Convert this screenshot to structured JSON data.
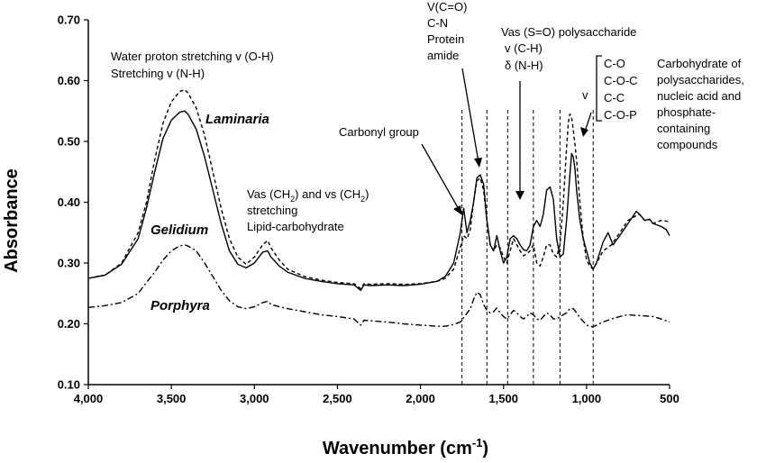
{
  "chart_data": {
    "type": "line",
    "xlabel_main": "Wavenumber (cm",
    "xlabel_sup": "-1",
    "xlabel_tail": ")",
    "ylabel": "Absorbance",
    "xlim": [
      4000,
      500
    ],
    "x_reversed": true,
    "ylim": [
      0.1,
      0.7
    ],
    "grid": false,
    "x_ticks": [
      {
        "value": 4000,
        "label": "4,000"
      },
      {
        "value": 3500,
        "label": "3,500"
      },
      {
        "value": 3000,
        "label": "3,000"
      },
      {
        "value": 2500,
        "label": "2,500"
      },
      {
        "value": 2000,
        "label": "2,000"
      },
      {
        "value": 1500,
        "label": "1,500"
      },
      {
        "value": 1000,
        "label": "1,000"
      },
      {
        "value": 500,
        "label": "500"
      }
    ],
    "y_ticks": [
      {
        "value": 0.1,
        "label": "0.10"
      },
      {
        "value": 0.2,
        "label": "0.20"
      },
      {
        "value": 0.3,
        "label": "0.30"
      },
      {
        "value": 0.4,
        "label": "0.40"
      },
      {
        "value": 0.5,
        "label": "0.50"
      },
      {
        "value": 0.6,
        "label": "0.60"
      },
      {
        "value": 0.7,
        "label": "0.70"
      }
    ],
    "series": [
      {
        "name": "Laminaria",
        "style": "dashed",
        "color": "#000000",
        "points": [
          [
            4000,
            0.275
          ],
          [
            3900,
            0.28
          ],
          [
            3800,
            0.3
          ],
          [
            3700,
            0.35
          ],
          [
            3650,
            0.4
          ],
          [
            3600,
            0.47
          ],
          [
            3550,
            0.53
          ],
          [
            3500,
            0.565
          ],
          [
            3450,
            0.582
          ],
          [
            3420,
            0.585
          ],
          [
            3400,
            0.58
          ],
          [
            3350,
            0.555
          ],
          [
            3300,
            0.51
          ],
          [
            3250,
            0.45
          ],
          [
            3200,
            0.39
          ],
          [
            3150,
            0.34
          ],
          [
            3100,
            0.31
          ],
          [
            3050,
            0.298
          ],
          [
            3000,
            0.31
          ],
          [
            2950,
            0.33
          ],
          [
            2920,
            0.337
          ],
          [
            2900,
            0.325
          ],
          [
            2850,
            0.305
          ],
          [
            2800,
            0.29
          ],
          [
            2700,
            0.278
          ],
          [
            2600,
            0.272
          ],
          [
            2500,
            0.268
          ],
          [
            2400,
            0.266
          ],
          [
            2360,
            0.258
          ],
          [
            2340,
            0.266
          ],
          [
            2300,
            0.265
          ],
          [
            2200,
            0.266
          ],
          [
            2100,
            0.265
          ],
          [
            2000,
            0.266
          ],
          [
            1900,
            0.27
          ],
          [
            1850,
            0.275
          ],
          [
            1800,
            0.29
          ],
          [
            1760,
            0.325
          ],
          [
            1740,
            0.345
          ],
          [
            1720,
            0.34
          ],
          [
            1700,
            0.355
          ],
          [
            1680,
            0.4
          ],
          [
            1660,
            0.435
          ],
          [
            1640,
            0.44
          ],
          [
            1620,
            0.42
          ],
          [
            1600,
            0.37
          ],
          [
            1580,
            0.33
          ],
          [
            1560,
            0.32
          ],
          [
            1540,
            0.33
          ],
          [
            1520,
            0.325
          ],
          [
            1500,
            0.31
          ],
          [
            1480,
            0.3
          ],
          [
            1460,
            0.32
          ],
          [
            1440,
            0.34
          ],
          [
            1420,
            0.33
          ],
          [
            1400,
            0.32
          ],
          [
            1380,
            0.312
          ],
          [
            1360,
            0.315
          ],
          [
            1340,
            0.32
          ],
          [
            1320,
            0.33
          ],
          [
            1300,
            0.3
          ],
          [
            1280,
            0.295
          ],
          [
            1260,
            0.31
          ],
          [
            1240,
            0.33
          ],
          [
            1220,
            0.33
          ],
          [
            1200,
            0.315
          ],
          [
            1180,
            0.31
          ],
          [
            1160,
            0.33
          ],
          [
            1140,
            0.4
          ],
          [
            1120,
            0.49
          ],
          [
            1110,
            0.53
          ],
          [
            1100,
            0.545
          ],
          [
            1090,
            0.54
          ],
          [
            1080,
            0.52
          ],
          [
            1060,
            0.47
          ],
          [
            1040,
            0.4
          ],
          [
            1020,
            0.34
          ],
          [
            1000,
            0.305
          ],
          [
            980,
            0.295
          ],
          [
            960,
            0.29
          ],
          [
            940,
            0.3
          ],
          [
            900,
            0.32
          ],
          [
            850,
            0.33
          ],
          [
            800,
            0.35
          ],
          [
            750,
            0.37
          ],
          [
            700,
            0.378
          ],
          [
            680,
            0.38
          ],
          [
            650,
            0.37
          ],
          [
            620,
            0.372
          ],
          [
            600,
            0.365
          ],
          [
            550,
            0.37
          ],
          [
            500,
            0.368
          ]
        ]
      },
      {
        "name": "Gelidium",
        "style": "solid",
        "color": "#000000",
        "points": [
          [
            4000,
            0.275
          ],
          [
            3900,
            0.28
          ],
          [
            3800,
            0.298
          ],
          [
            3700,
            0.34
          ],
          [
            3650,
            0.39
          ],
          [
            3600,
            0.45
          ],
          [
            3550,
            0.505
          ],
          [
            3500,
            0.535
          ],
          [
            3450,
            0.548
          ],
          [
            3420,
            0.55
          ],
          [
            3400,
            0.545
          ],
          [
            3350,
            0.52
          ],
          [
            3300,
            0.475
          ],
          [
            3250,
            0.42
          ],
          [
            3200,
            0.365
          ],
          [
            3150,
            0.32
          ],
          [
            3100,
            0.298
          ],
          [
            3050,
            0.292
          ],
          [
            3000,
            0.3
          ],
          [
            2950,
            0.318
          ],
          [
            2920,
            0.32
          ],
          [
            2900,
            0.31
          ],
          [
            2850,
            0.295
          ],
          [
            2800,
            0.285
          ],
          [
            2700,
            0.275
          ],
          [
            2600,
            0.27
          ],
          [
            2500,
            0.266
          ],
          [
            2400,
            0.264
          ],
          [
            2360,
            0.255
          ],
          [
            2340,
            0.264
          ],
          [
            2300,
            0.263
          ],
          [
            2200,
            0.264
          ],
          [
            2100,
            0.263
          ],
          [
            2000,
            0.265
          ],
          [
            1900,
            0.27
          ],
          [
            1850,
            0.278
          ],
          [
            1800,
            0.3
          ],
          [
            1760,
            0.35
          ],
          [
            1740,
            0.39
          ],
          [
            1720,
            0.35
          ],
          [
            1700,
            0.37
          ],
          [
            1680,
            0.4
          ],
          [
            1660,
            0.44
          ],
          [
            1640,
            0.445
          ],
          [
            1620,
            0.43
          ],
          [
            1600,
            0.37
          ],
          [
            1580,
            0.33
          ],
          [
            1560,
            0.32
          ],
          [
            1540,
            0.345
          ],
          [
            1520,
            0.32
          ],
          [
            1500,
            0.3
          ],
          [
            1480,
            0.31
          ],
          [
            1460,
            0.34
          ],
          [
            1440,
            0.345
          ],
          [
            1420,
            0.34
          ],
          [
            1400,
            0.33
          ],
          [
            1380,
            0.322
          ],
          [
            1360,
            0.32
          ],
          [
            1340,
            0.33
          ],
          [
            1320,
            0.36
          ],
          [
            1300,
            0.37
          ],
          [
            1280,
            0.36
          ],
          [
            1260,
            0.38
          ],
          [
            1240,
            0.42
          ],
          [
            1220,
            0.425
          ],
          [
            1200,
            0.405
          ],
          [
            1180,
            0.34
          ],
          [
            1160,
            0.31
          ],
          [
            1140,
            0.315
          ],
          [
            1120,
            0.37
          ],
          [
            1100,
            0.445
          ],
          [
            1090,
            0.48
          ],
          [
            1080,
            0.475
          ],
          [
            1070,
            0.455
          ],
          [
            1060,
            0.42
          ],
          [
            1040,
            0.37
          ],
          [
            1020,
            0.34
          ],
          [
            1000,
            0.32
          ],
          [
            980,
            0.3
          ],
          [
            960,
            0.29
          ],
          [
            940,
            0.3
          ],
          [
            900,
            0.335
          ],
          [
            870,
            0.35
          ],
          [
            840,
            0.33
          ],
          [
            800,
            0.345
          ],
          [
            750,
            0.365
          ],
          [
            700,
            0.385
          ],
          [
            680,
            0.38
          ],
          [
            650,
            0.37
          ],
          [
            620,
            0.372
          ],
          [
            600,
            0.365
          ],
          [
            550,
            0.36
          ],
          [
            520,
            0.355
          ],
          [
            500,
            0.345
          ]
        ]
      },
      {
        "name": "Porphyra",
        "style": "dashdot",
        "color": "#000000",
        "points": [
          [
            4000,
            0.227
          ],
          [
            3900,
            0.23
          ],
          [
            3800,
            0.235
          ],
          [
            3700,
            0.25
          ],
          [
            3650,
            0.268
          ],
          [
            3600,
            0.285
          ],
          [
            3550,
            0.305
          ],
          [
            3500,
            0.32
          ],
          [
            3450,
            0.328
          ],
          [
            3420,
            0.33
          ],
          [
            3400,
            0.328
          ],
          [
            3350,
            0.32
          ],
          [
            3300,
            0.3
          ],
          [
            3250,
            0.278
          ],
          [
            3200,
            0.255
          ],
          [
            3150,
            0.238
          ],
          [
            3100,
            0.228
          ],
          [
            3050,
            0.225
          ],
          [
            3000,
            0.228
          ],
          [
            2950,
            0.235
          ],
          [
            2920,
            0.237
          ],
          [
            2900,
            0.232
          ],
          [
            2850,
            0.228
          ],
          [
            2800,
            0.225
          ],
          [
            2700,
            0.22
          ],
          [
            2600,
            0.215
          ],
          [
            2500,
            0.212
          ],
          [
            2400,
            0.208
          ],
          [
            2360,
            0.198
          ],
          [
            2340,
            0.206
          ],
          [
            2300,
            0.205
          ],
          [
            2200,
            0.203
          ],
          [
            2100,
            0.2
          ],
          [
            2000,
            0.198
          ],
          [
            1900,
            0.196
          ],
          [
            1850,
            0.196
          ],
          [
            1800,
            0.199
          ],
          [
            1760,
            0.203
          ],
          [
            1740,
            0.21
          ],
          [
            1700,
            0.225
          ],
          [
            1680,
            0.24
          ],
          [
            1660,
            0.252
          ],
          [
            1640,
            0.248
          ],
          [
            1620,
            0.232
          ],
          [
            1600,
            0.222
          ],
          [
            1580,
            0.218
          ],
          [
            1560,
            0.22
          ],
          [
            1540,
            0.226
          ],
          [
            1520,
            0.218
          ],
          [
            1500,
            0.212
          ],
          [
            1480,
            0.208
          ],
          [
            1460,
            0.215
          ],
          [
            1440,
            0.222
          ],
          [
            1420,
            0.218
          ],
          [
            1400,
            0.212
          ],
          [
            1380,
            0.208
          ],
          [
            1360,
            0.212
          ],
          [
            1340,
            0.218
          ],
          [
            1320,
            0.215
          ],
          [
            1300,
            0.208
          ],
          [
            1280,
            0.206
          ],
          [
            1260,
            0.212
          ],
          [
            1240,
            0.218
          ],
          [
            1220,
            0.215
          ],
          [
            1200,
            0.208
          ],
          [
            1180,
            0.208
          ],
          [
            1160,
            0.212
          ],
          [
            1140,
            0.215
          ],
          [
            1120,
            0.218
          ],
          [
            1100,
            0.225
          ],
          [
            1080,
            0.225
          ],
          [
            1060,
            0.218
          ],
          [
            1040,
            0.21
          ],
          [
            1020,
            0.204
          ],
          [
            1000,
            0.198
          ],
          [
            980,
            0.196
          ],
          [
            960,
            0.195
          ],
          [
            940,
            0.198
          ],
          [
            900,
            0.203
          ],
          [
            850,
            0.208
          ],
          [
            800,
            0.212
          ],
          [
            750,
            0.215
          ],
          [
            700,
            0.214
          ],
          [
            650,
            0.213
          ],
          [
            600,
            0.212
          ],
          [
            550,
            0.208
          ],
          [
            520,
            0.205
          ],
          [
            500,
            0.203
          ]
        ]
      }
    ],
    "series_labels": {
      "laminaria": "Laminaria",
      "gelidium": "Gelidium",
      "porphyra": "Porphyra"
    },
    "reference_lines": [
      1750,
      1600,
      1475,
      1320,
      1160,
      960
    ],
    "annotations": {
      "water_1": "Water proton stretching v (O-H)",
      "water_2": "Stretching v (N-H)",
      "vas_1a": "Vas (CH",
      "vas_1sub_a": "2",
      "vas_1b": ") and vs (CH",
      "vas_1sub_b": "2",
      "vas_1c": ")",
      "vas_2": "stretching",
      "vas_3": "Lipid-carbohydrate",
      "carbonyl": "Carbonyl group",
      "amide_1": "V(C=O)",
      "amide_2": "C-N",
      "amide_3": "Protein",
      "amide_4": "amide",
      "sulf_1": "Vas (S=O) polysaccharide",
      "sulf_2": "v (C-H)",
      "sulf_3": "δ (N-H)",
      "v_symbol": "v",
      "bond_1": "C-O",
      "bond_2": "C-O-C",
      "bond_3": "C-C",
      "bond_4": "C-O-P",
      "carb_1": "Carbohydrate of",
      "carb_2": "polysaccharides,",
      "carb_3": "nucleic acid and",
      "carb_4": "phosphate-",
      "carb_5": "containing",
      "carb_6": "compounds"
    }
  }
}
